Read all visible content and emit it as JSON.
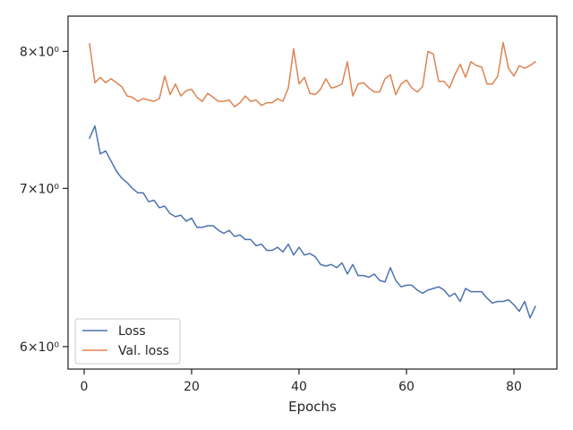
{
  "chart_data": {
    "type": "line",
    "title": "",
    "xlabel": "Epochs",
    "ylabel": "",
    "yscale": "log",
    "grid": false,
    "legend_position": "lower-left",
    "xlim": [
      -3,
      88
    ],
    "ylim": [
      5.87,
      8.28
    ],
    "xticks": [
      0,
      20,
      40,
      60,
      80
    ],
    "xtick_labels": [
      "0",
      "20",
      "40",
      "60",
      "80"
    ],
    "yticks": [
      6,
      7,
      8
    ],
    "ytick_labels": [
      "6×10⁰",
      "7×10⁰",
      "8×10⁰"
    ],
    "x": [
      1,
      2,
      3,
      4,
      5,
      6,
      7,
      8,
      9,
      10,
      11,
      12,
      13,
      14,
      15,
      16,
      17,
      18,
      19,
      20,
      21,
      22,
      23,
      24,
      25,
      26,
      27,
      28,
      29,
      30,
      31,
      32,
      33,
      34,
      35,
      36,
      37,
      38,
      39,
      40,
      41,
      42,
      43,
      44,
      45,
      46,
      47,
      48,
      49,
      50,
      51,
      52,
      53,
      54,
      55,
      56,
      57,
      58,
      59,
      60,
      61,
      62,
      63,
      64,
      65,
      66,
      67,
      68,
      69,
      70,
      71,
      72,
      73,
      74,
      75,
      76,
      77,
      78,
      79,
      80,
      81,
      82,
      83,
      84
    ],
    "series": [
      {
        "name": "Loss",
        "color": "#4c72b0",
        "values": [
          7.35,
          7.44,
          7.24,
          7.26,
          7.19,
          7.12,
          7.07,
          7.04,
          7.0,
          6.97,
          6.97,
          6.91,
          6.92,
          6.87,
          6.88,
          6.83,
          6.81,
          6.82,
          6.78,
          6.8,
          6.74,
          6.74,
          6.75,
          6.75,
          6.72,
          6.7,
          6.72,
          6.68,
          6.69,
          6.66,
          6.66,
          6.62,
          6.63,
          6.59,
          6.59,
          6.61,
          6.58,
          6.63,
          6.56,
          6.61,
          6.56,
          6.57,
          6.55,
          6.5,
          6.49,
          6.5,
          6.48,
          6.51,
          6.44,
          6.5,
          6.43,
          6.43,
          6.42,
          6.44,
          6.4,
          6.39,
          6.48,
          6.4,
          6.36,
          6.37,
          6.37,
          6.34,
          6.32,
          6.34,
          6.35,
          6.36,
          6.34,
          6.3,
          6.32,
          6.27,
          6.35,
          6.33,
          6.33,
          6.33,
          6.29,
          6.26,
          6.27,
          6.27,
          6.28,
          6.25,
          6.21,
          6.27,
          6.17,
          6.24
        ]
      },
      {
        "name": "Val. loss",
        "color": "#dd8452",
        "values": [
          8.06,
          7.76,
          7.8,
          7.76,
          7.79,
          7.76,
          7.73,
          7.66,
          7.65,
          7.62,
          7.64,
          7.63,
          7.62,
          7.64,
          7.81,
          7.67,
          7.75,
          7.66,
          7.7,
          7.71,
          7.65,
          7.62,
          7.68,
          7.65,
          7.62,
          7.62,
          7.63,
          7.58,
          7.61,
          7.66,
          7.62,
          7.63,
          7.59,
          7.61,
          7.61,
          7.64,
          7.62,
          7.72,
          8.02,
          7.75,
          7.8,
          7.68,
          7.67,
          7.71,
          7.79,
          7.72,
          7.73,
          7.75,
          7.92,
          7.66,
          7.75,
          7.76,
          7.72,
          7.69,
          7.69,
          7.79,
          7.82,
          7.67,
          7.75,
          7.78,
          7.72,
          7.69,
          7.73,
          8.0,
          7.98,
          7.77,
          7.77,
          7.72,
          7.82,
          7.9,
          7.8,
          7.92,
          7.89,
          7.88,
          7.75,
          7.75,
          7.81,
          8.07,
          7.87,
          7.81,
          7.89,
          7.87,
          7.89,
          7.92
        ]
      }
    ]
  }
}
